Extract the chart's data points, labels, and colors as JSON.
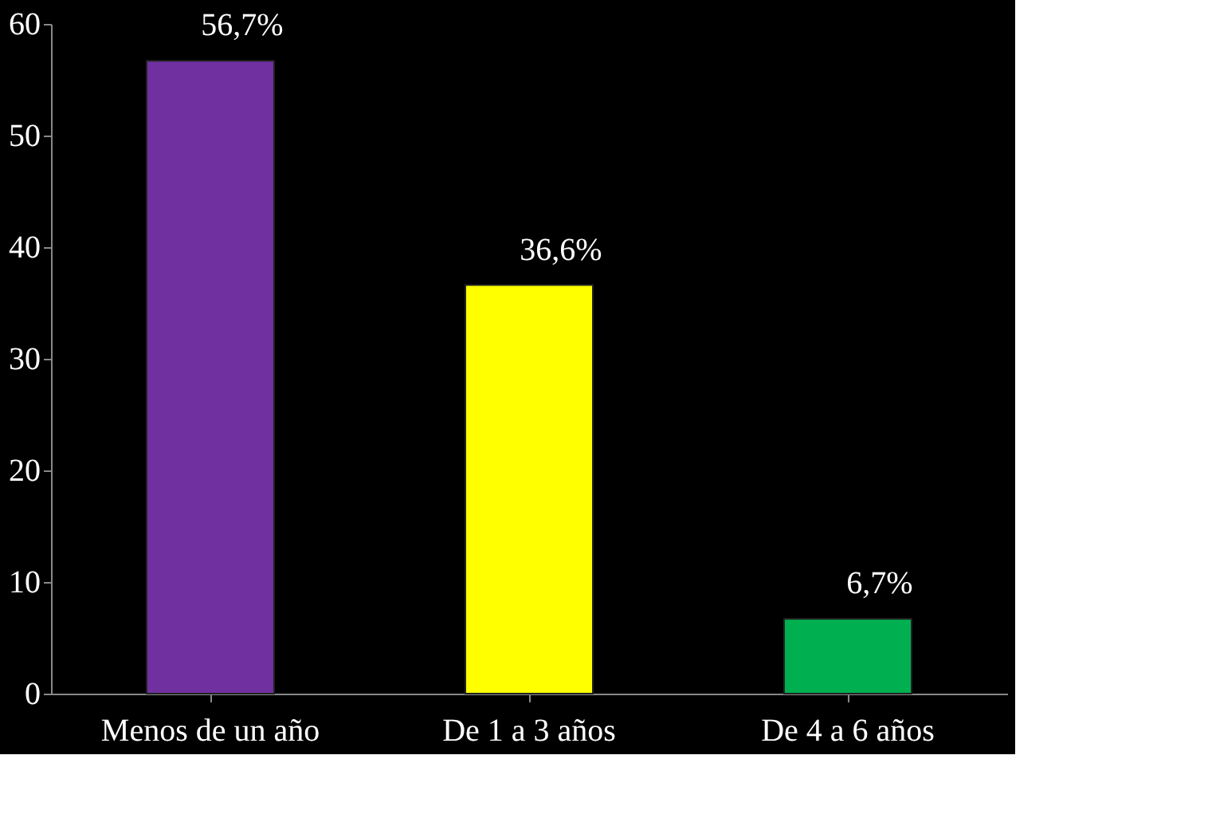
{
  "chart_data": {
    "type": "bar",
    "categories": [
      "Menos de un año",
      "De 1 a 3 años",
      "De 4 a 6 años"
    ],
    "values": [
      56.7,
      36.6,
      6.7
    ],
    "colors": [
      "#7030a0",
      "#ffff00",
      "#00b050"
    ],
    "value_labels": [
      "56,7%",
      "36,6%",
      "6,7%"
    ],
    "ylim": [
      0,
      60
    ],
    "yticks": [
      0,
      10,
      20,
      30,
      40,
      50,
      60
    ],
    "grid": false
  }
}
